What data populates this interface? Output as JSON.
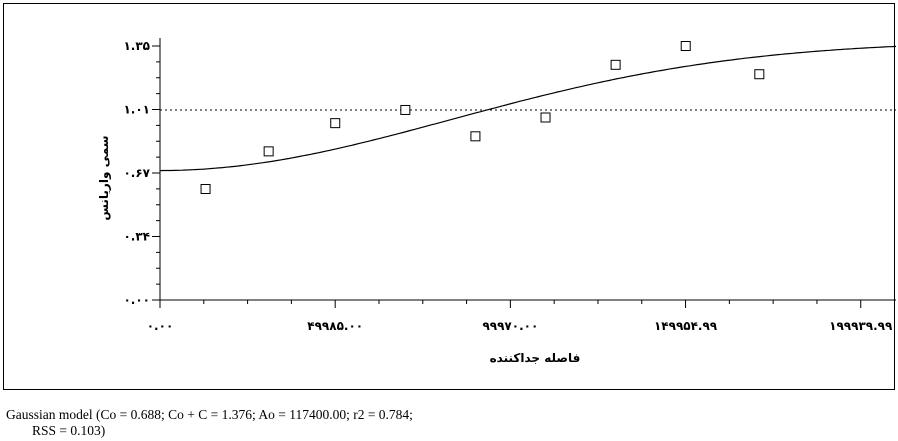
{
  "chart_data": {
    "type": "scatter",
    "xlabel": "فاصله جداکننده",
    "ylabel": "سمی واریانس",
    "xlim": [
      0,
      210000
    ],
    "ylim": [
      0,
      1.35
    ],
    "x_ticks": [
      {
        "value": 0,
        "label": "۰.۰۰"
      },
      {
        "value": 49985,
        "label": "۴۹۹۸۵.۰۰"
      },
      {
        "value": 99970,
        "label": "۹۹۹۷۰.۰۰"
      },
      {
        "value": 149954.99,
        "label": "۱۴۹۹۵۴.۹۹"
      },
      {
        "value": 199939.99,
        "label": "۱۹۹۹۳۹.۹۹"
      }
    ],
    "y_ticks": [
      {
        "value": 0,
        "label": "۰.۰۰"
      },
      {
        "value": 0.34,
        "label": "۰.۳۴"
      },
      {
        "value": 0.67,
        "label": "۰.۶۷"
      },
      {
        "value": 1.01,
        "label": "۱.۰۱"
      },
      {
        "value": 1.35,
        "label": "۱.۳۵"
      }
    ],
    "sill_line": 1.01,
    "points": [
      {
        "x": 13000,
        "y": 0.59
      },
      {
        "x": 31000,
        "y": 0.79
      },
      {
        "x": 50000,
        "y": 0.94
      },
      {
        "x": 70000,
        "y": 1.01
      },
      {
        "x": 90000,
        "y": 0.87
      },
      {
        "x": 110000,
        "y": 0.97
      },
      {
        "x": 130000,
        "y": 1.25
      },
      {
        "x": 150000,
        "y": 1.35
      },
      {
        "x": 171000,
        "y": 1.2
      }
    ],
    "model": {
      "name": "Gaussian",
      "nugget": 0.688,
      "sill": 1.376,
      "range": 117400
    }
  },
  "caption": {
    "line1": "Gaussian model (Co = 0.688; Co + C = 1.376; Ao = 117400.00; r2 = 0.784;",
    "line2": "RSS = 0.103)"
  }
}
